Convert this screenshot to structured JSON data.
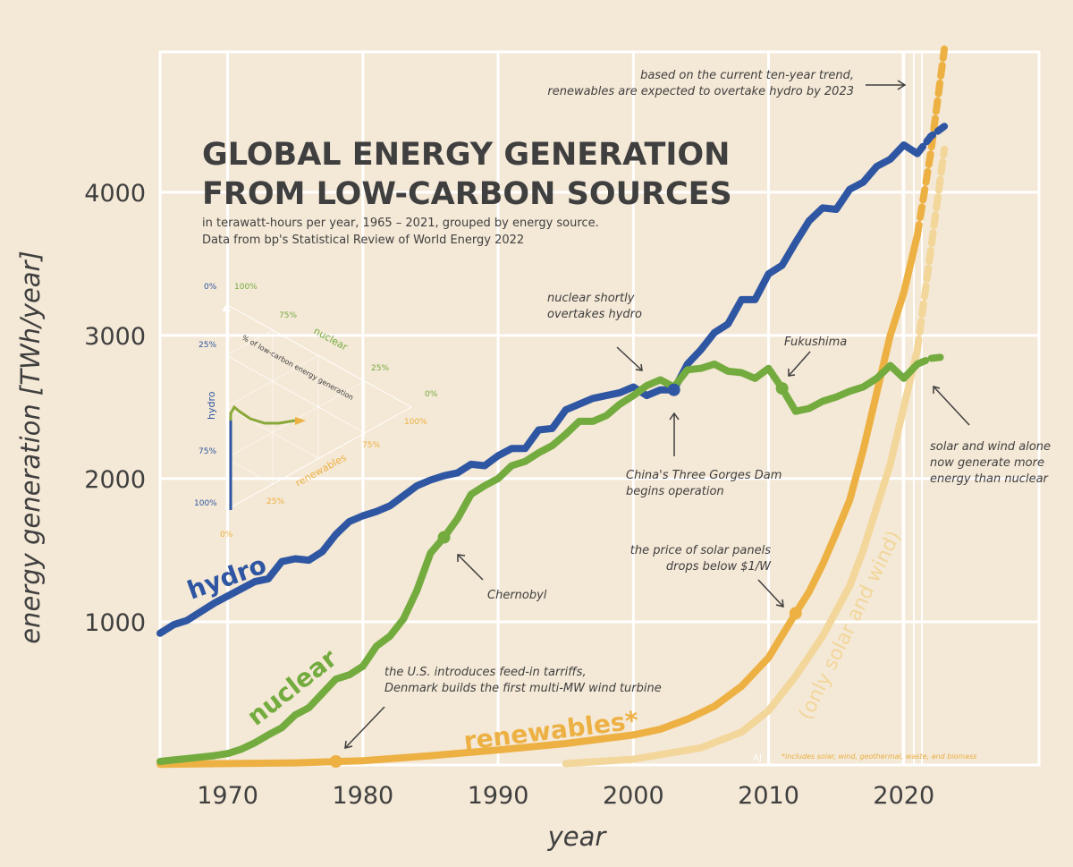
{
  "title_line1": "GLOBAL ENERGY GENERATION",
  "title_line2": "FROM LOW-CARBON SOURCES",
  "subtitle_line1": "in terawatt-hours per year, 1965 – 2021, grouped by energy source.",
  "subtitle_line2": "Data from bp's Statistical Review of World Energy 2022",
  "footnote": "*includes solar, wind, geothermal, waste, and biomass",
  "signature": "AJ",
  "colors": {
    "hydro": "#2e56a2",
    "nuclear": "#74ab3f",
    "renewables": "#edb143",
    "solar_wind": "#f2d69a",
    "grid": "#ffffff",
    "background": "#f4e8d6"
  },
  "annotations": {
    "overtake": [
      "based on the current ten-year trend,",
      "renewables are expected to overtake hydro by 2023"
    ],
    "nuclear_overtakes": [
      "nuclear shortly",
      "overtakes hydro"
    ],
    "fukushima": [
      "Fukushima"
    ],
    "three_gorges": [
      "China's Three Gorges Dam",
      "begins operation"
    ],
    "solar_wind_alone": [
      "solar and wind alone",
      "now generate more",
      "energy than nuclear"
    ],
    "chernobyl": [
      "Chernobyl"
    ],
    "solar_price": [
      "the price of solar panels",
      "drops below $1/W"
    ],
    "feed_in": [
      "the U.S. introduces feed-in tarriffs,",
      "Denmark builds the first multi-MW wind turbine"
    ]
  },
  "ternary": {
    "axis_title": "% of low-carbon energy generation",
    "hydro_label": "hydro",
    "nuclear_label": "nuclear",
    "renewables_label": "renewables",
    "hydro_ticks": [
      "0%",
      "25%",
      "75%",
      "100%"
    ],
    "nuclear_ticks": [
      "100%",
      "75%",
      "25%",
      "0%"
    ],
    "renewables_ticks": [
      "0%",
      "25%",
      "75%",
      "100%"
    ]
  },
  "chart_data": {
    "type": "line",
    "title": "GLOBAL ENERGY GENERATION FROM LOW-CARBON SOURCES",
    "xlabel": "year",
    "ylabel": "energy generation [TWh/year]",
    "xlim": [
      1965,
      2030
    ],
    "ylim": [
      0,
      4980
    ],
    "xticks": [
      1970,
      1980,
      1990,
      2000,
      2010,
      2020
    ],
    "yticks": [
      1000,
      2000,
      3000,
      4000
    ],
    "grid": true,
    "series": [
      {
        "name": "hydro",
        "x": [
          1965,
          1966,
          1967,
          1968,
          1969,
          1970,
          1971,
          1972,
          1973,
          1974,
          1975,
          1976,
          1977,
          1978,
          1979,
          1980,
          1981,
          1982,
          1983,
          1984,
          1985,
          1986,
          1987,
          1988,
          1989,
          1990,
          1991,
          1992,
          1993,
          1994,
          1995,
          1996,
          1997,
          1998,
          1999,
          2000,
          2001,
          2002,
          2003,
          2004,
          2005,
          2006,
          2007,
          2008,
          2009,
          2010,
          2011,
          2012,
          2013,
          2014,
          2015,
          2016,
          2017,
          2018,
          2019,
          2020,
          2021
        ],
        "y": [
          920,
          980,
          1010,
          1070,
          1130,
          1180,
          1230,
          1280,
          1300,
          1420,
          1440,
          1430,
          1490,
          1610,
          1700,
          1740,
          1770,
          1810,
          1880,
          1950,
          1990,
          2020,
          2040,
          2100,
          2090,
          2160,
          2210,
          2210,
          2340,
          2350,
          2480,
          2520,
          2560,
          2580,
          2600,
          2640,
          2580,
          2620,
          2620,
          2800,
          2900,
          3020,
          3080,
          3250,
          3250,
          3430,
          3490,
          3650,
          3800,
          3890,
          3880,
          4020,
          4070,
          4180,
          4230,
          4330,
          4270
        ]
      },
      {
        "name": "hydro (projection)",
        "x": [
          2021,
          2022,
          2023
        ],
        "y": [
          4270,
          4390,
          4460
        ]
      },
      {
        "name": "nuclear",
        "x": [
          1965,
          1966,
          1967,
          1968,
          1969,
          1970,
          1971,
          1972,
          1973,
          1974,
          1975,
          1976,
          1977,
          1978,
          1979,
          1980,
          1981,
          1982,
          1983,
          1984,
          1985,
          1986,
          1987,
          1988,
          1989,
          1990,
          1991,
          1992,
          1993,
          1994,
          1995,
          1996,
          1997,
          1998,
          1999,
          2000,
          2001,
          2002,
          2003,
          2004,
          2005,
          2006,
          2007,
          2008,
          2009,
          2010,
          2011,
          2012,
          2013,
          2014,
          2015,
          2016,
          2017,
          2018,
          2019,
          2020,
          2021
        ],
        "y": [
          25,
          35,
          45,
          55,
          65,
          80,
          110,
          155,
          210,
          260,
          350,
          400,
          500,
          600,
          630,
          690,
          830,
          900,
          1020,
          1220,
          1480,
          1590,
          1720,
          1890,
          1950,
          2000,
          2090,
          2120,
          2180,
          2230,
          2310,
          2400,
          2400,
          2440,
          2520,
          2580,
          2650,
          2690,
          2640,
          2760,
          2770,
          2800,
          2750,
          2740,
          2700,
          2770,
          2630,
          2470,
          2490,
          2540,
          2570,
          2610,
          2640,
          2700,
          2790,
          2700,
          2800
        ]
      },
      {
        "name": "nuclear (projection)",
        "x": [
          2021,
          2022,
          2023
        ],
        "y": [
          2800,
          2840,
          2850
        ]
      },
      {
        "name": "renewables*",
        "x": [
          1965,
          1970,
          1975,
          1980,
          1985,
          1990,
          1995,
          2000,
          2002,
          2004,
          2006,
          2008,
          2010,
          2012,
          2013,
          2014,
          2015,
          2016,
          2017,
          2018,
          2019,
          2020,
          2021
        ],
        "y": [
          5,
          10,
          15,
          30,
          65,
          105,
          150,
          210,
          250,
          320,
          410,
          550,
          750,
          1060,
          1210,
          1400,
          1620,
          1850,
          2200,
          2600,
          3000,
          3300,
          3700
        ]
      },
      {
        "name": "renewables* (projection)",
        "x": [
          2021,
          2022,
          2023
        ],
        "y": [
          3700,
          4280,
          5000
        ]
      },
      {
        "name": "(only solar and wind)",
        "x": [
          1995,
          2000,
          2005,
          2008,
          2010,
          2012,
          2014,
          2016,
          2017,
          2018,
          2019,
          2020,
          2021
        ],
        "y": [
          10,
          40,
          120,
          230,
          380,
          620,
          900,
          1250,
          1500,
          1800,
          2100,
          2500,
          2900
        ]
      },
      {
        "name": "(only solar and wind) (projection)",
        "x": [
          2021,
          2022,
          2023
        ],
        "y": [
          2900,
          3600,
          4300
        ]
      }
    ],
    "highlight_points": [
      {
        "series": "nuclear",
        "x": 1986,
        "y": 1590,
        "label": "Chernobyl"
      },
      {
        "series": "hydro",
        "x": 2003,
        "y": 2620,
        "label": "China's Three Gorges Dam"
      },
      {
        "series": "nuclear",
        "x": 2011,
        "y": 2630,
        "label": "Fukushima"
      },
      {
        "series": "renewables*",
        "x": 2012,
        "y": 1060,
        "label": "the price of solar panels drops below $1/W"
      },
      {
        "series": "renewables*",
        "x": 1978,
        "y": 25,
        "label": "feed-in tarriffs"
      }
    ]
  }
}
